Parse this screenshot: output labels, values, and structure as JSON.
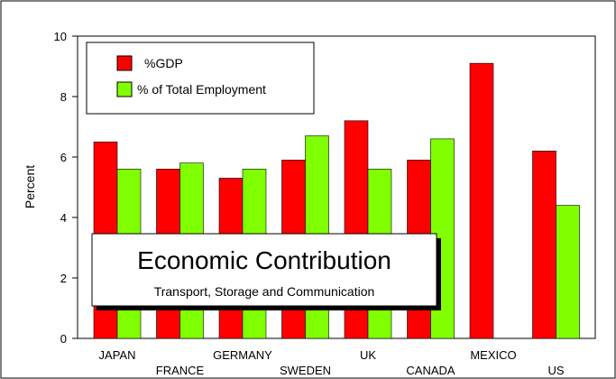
{
  "chart_data": {
    "type": "bar",
    "categories": [
      "JAPAN",
      "FRANCE",
      "GERMANY",
      "SWEDEN",
      "UK",
      "CANADA",
      "MEXICO",
      "US"
    ],
    "series": [
      {
        "name": "%GDP",
        "color": "#ff0000",
        "values": [
          6.5,
          5.6,
          5.3,
          5.9,
          7.2,
          5.9,
          9.1,
          6.2
        ]
      },
      {
        "name": "% of Total Employment",
        "color": "#80ff00",
        "values": [
          5.6,
          5.8,
          5.6,
          6.7,
          5.6,
          6.6,
          null,
          4.4
        ]
      }
    ],
    "ylabel": "Percent",
    "ylim": [
      0,
      10
    ],
    "yticks": [
      "0",
      "2",
      "4",
      "6",
      "8",
      "10"
    ],
    "legend_position": "top-left",
    "grid": false,
    "annotation": {
      "title": "Economic Contribution",
      "subtitle": "Transport, Storage and Communication",
      "position": "lower-left"
    }
  }
}
